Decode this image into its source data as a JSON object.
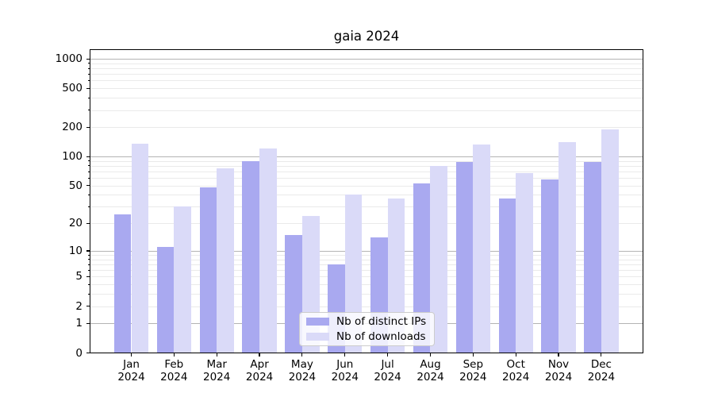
{
  "chart_data": {
    "type": "bar",
    "title": "gaia 2024",
    "categories": [
      {
        "month": "Jan",
        "year": "2024"
      },
      {
        "month": "Feb",
        "year": "2024"
      },
      {
        "month": "Mar",
        "year": "2024"
      },
      {
        "month": "Apr",
        "year": "2024"
      },
      {
        "month": "May",
        "year": "2024"
      },
      {
        "month": "Jun",
        "year": "2024"
      },
      {
        "month": "Jul",
        "year": "2024"
      },
      {
        "month": "Aug",
        "year": "2024"
      },
      {
        "month": "Sep",
        "year": "2024"
      },
      {
        "month": "Oct",
        "year": "2024"
      },
      {
        "month": "Nov",
        "year": "2024"
      },
      {
        "month": "Dec",
        "year": "2024"
      }
    ],
    "series": [
      {
        "name": "Nb of distinct IPs",
        "color": "#a9a9f0",
        "values": [
          25,
          11,
          48,
          90,
          15,
          7,
          14,
          53,
          88,
          37,
          58,
          88
        ]
      },
      {
        "name": "Nb of downloads",
        "color": "#dadaf8",
        "values": [
          136,
          30,
          75,
          120,
          24,
          40,
          37,
          80,
          133,
          67,
          140,
          190
        ]
      }
    ],
    "yscale": "log1p",
    "ytick_values": [
      0,
      1,
      2,
      5,
      10,
      20,
      50,
      100,
      200,
      500,
      1000
    ],
    "ytick_labels": [
      "0",
      "1",
      "2",
      "5",
      "10",
      "20",
      "50",
      "100",
      "200",
      "500",
      "1000"
    ],
    "ylim": [
      0,
      1254
    ],
    "grid": true,
    "legend_position": "lower center",
    "colors": {
      "major_grid": "#b4b4b4",
      "minor_grid": "#eaeaea",
      "axis": "#000000",
      "text": "#000000",
      "background": "#ffffff"
    }
  }
}
